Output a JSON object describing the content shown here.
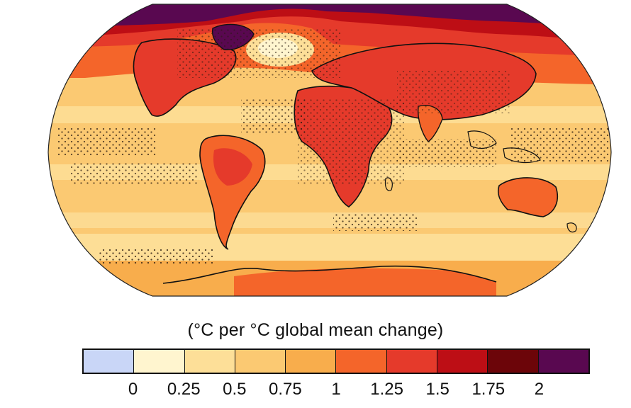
{
  "legend": {
    "title": "(°C per °C global mean change)",
    "ticks": [
      "0",
      "0.25",
      "0.5",
      "0.75",
      "1",
      "1.25",
      "1.5",
      "1.75",
      "2"
    ],
    "bins": [
      {
        "range": "< 0",
        "color": "#c9d6f7"
      },
      {
        "range": "0 – 0.25",
        "color": "#fff5cf"
      },
      {
        "range": "0.25 – 0.5",
        "color": "#fddf98"
      },
      {
        "range": "0.5 – 0.75",
        "color": "#fbc972"
      },
      {
        "range": "0.75 – 1",
        "color": "#f8ad4c"
      },
      {
        "range": "1 – 1.25",
        "color": "#f4652a"
      },
      {
        "range": "1.25 – 1.5",
        "color": "#e53a2b"
      },
      {
        "range": "1.5 – 1.75",
        "color": "#bd0e15"
      },
      {
        "range": "1.75 – 2",
        "color": "#6c0509"
      },
      {
        "range": "> 2",
        "color": "#590850"
      }
    ]
  },
  "map": {
    "projection": "robinson-like world map",
    "stippling": "dots mark regions of model agreement"
  }
}
